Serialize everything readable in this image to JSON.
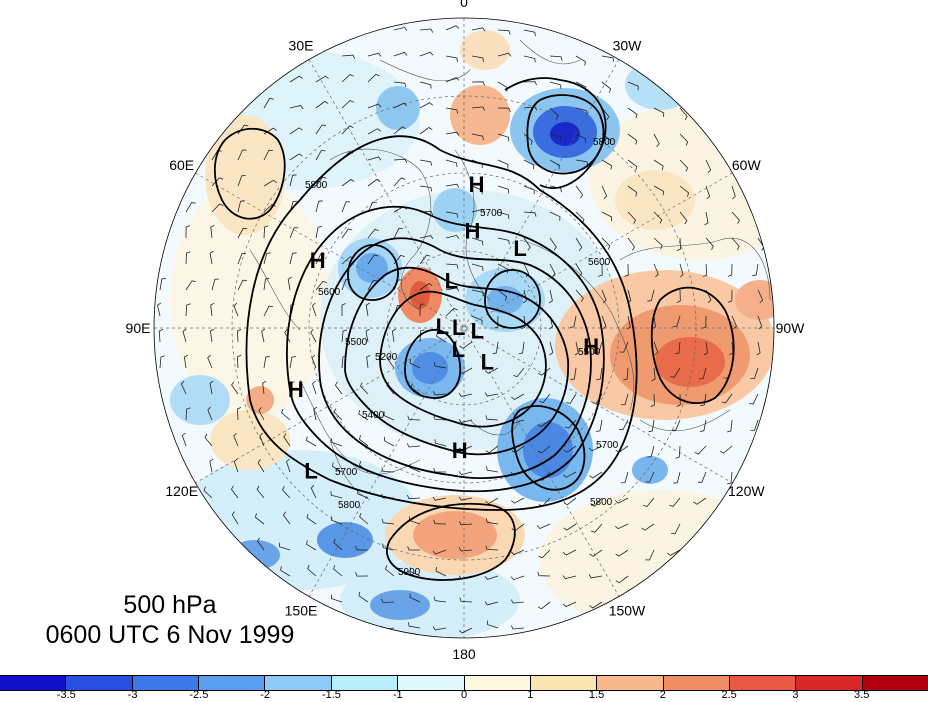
{
  "map": {
    "projection": "north polar stereographic",
    "lon_labels": [
      {
        "text": "0",
        "lon": 0
      },
      {
        "text": "30W",
        "lon": -30
      },
      {
        "text": "60W",
        "lon": -60
      },
      {
        "text": "90W",
        "lon": -90
      },
      {
        "text": "120W",
        "lon": -120
      },
      {
        "text": "150W",
        "lon": -150
      },
      {
        "text": "180",
        "lon": 180
      },
      {
        "text": "150E",
        "lon": 150
      },
      {
        "text": "120E",
        "lon": 120
      },
      {
        "text": "90E",
        "lon": 90
      },
      {
        "text": "60E",
        "lon": 60
      },
      {
        "text": "30E",
        "lon": 30
      }
    ],
    "pressure_centers": [
      {
        "label": "H",
        "lon": -5,
        "lat": 40
      },
      {
        "label": "H",
        "lon": -5,
        "lat": 55
      },
      {
        "label": "L",
        "lon": -35,
        "lat": 55
      },
      {
        "label": "H",
        "lon": 65,
        "lat": 35
      },
      {
        "label": "L",
        "lon": 15,
        "lat": 72
      },
      {
        "label": "L",
        "lon": 85,
        "lat": 82
      },
      {
        "label": "L",
        "lon": 80,
        "lat": 88
      },
      {
        "label": "L",
        "lon": -100,
        "lat": 85
      },
      {
        "label": "H",
        "lon": -98,
        "lat": 45
      },
      {
        "label": "L",
        "lon": 165,
        "lat": 82
      },
      {
        "label": "L",
        "lon": -145,
        "lat": 75
      },
      {
        "label": "H",
        "lon": 110,
        "lat": 30
      },
      {
        "label": "H",
        "lon": 178,
        "lat": 47
      },
      {
        "label": "L",
        "lon": 133,
        "lat": 22
      }
    ],
    "contour_labels": [
      "5800",
      "5700",
      "5600",
      "5500",
      "5400",
      "5200",
      "5500",
      "5600",
      "5700",
      "5800",
      "5900",
      "5800",
      "5700",
      "5800"
    ]
  },
  "caption": {
    "level": "500 hPa",
    "time": "0600 UTC 6 Nov 1999"
  },
  "colorbar": {
    "colors": [
      "#1010c8",
      "#2850e0",
      "#3c78e8",
      "#5a9ef0",
      "#8ccaf8",
      "#b8eefc",
      "#e0f8fc",
      "#fcf8e0",
      "#fce4b0",
      "#f8b88c",
      "#f08c64",
      "#e85a44",
      "#d82828",
      "#b00010"
    ],
    "tick_labels": [
      "-3.5",
      "-3",
      "-2.5",
      "-2",
      "-1.5",
      "-1",
      "0",
      "1",
      "1.5",
      "2",
      "2.5",
      "3",
      "3.5"
    ]
  }
}
